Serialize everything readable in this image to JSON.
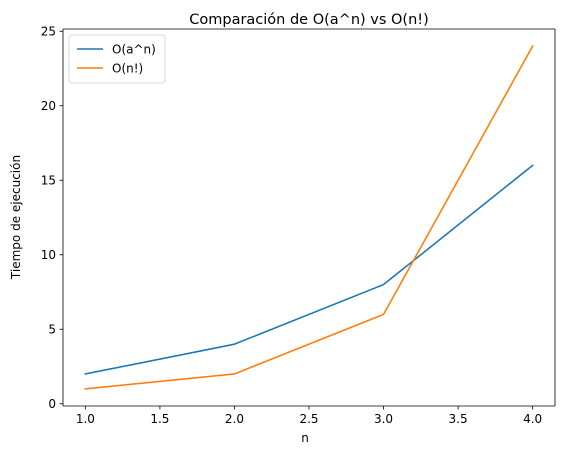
{
  "chart_data": {
    "type": "line",
    "title": "Comparación de O(a^n) vs O(n!)",
    "xlabel": "n",
    "ylabel": "Tiempo de ejecución",
    "x": [
      1.0,
      2.0,
      3.0,
      4.0
    ],
    "series": [
      {
        "name": "O(a^n)",
        "values": [
          2,
          4,
          8,
          16
        ],
        "color": "#1f77b4"
      },
      {
        "name": "O(n!)",
        "values": [
          1,
          2,
          6,
          24
        ],
        "color": "#ff7f0e"
      }
    ],
    "xlim": [
      0.85,
      4.15
    ],
    "ylim": [
      -0.15,
      25.15
    ],
    "xticks": [
      "1.0",
      "1.5",
      "2.0",
      "2.5",
      "3.0",
      "3.5",
      "4.0"
    ],
    "yticks": [
      "0",
      "5",
      "10",
      "15",
      "20",
      "25"
    ],
    "grid": false,
    "legend": "top-left"
  }
}
